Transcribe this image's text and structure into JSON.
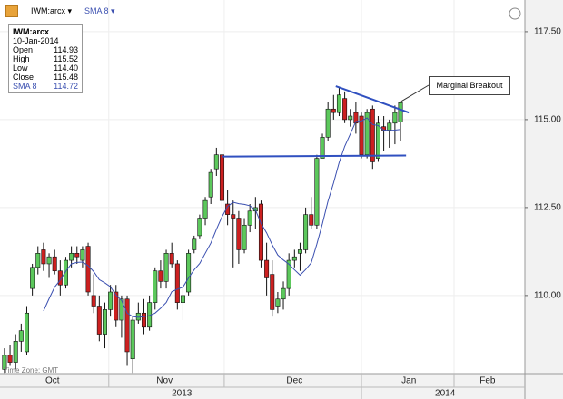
{
  "chart_data": {
    "type": "candlestick",
    "toolbar": {
      "symbol_menu": "IWM:arcx",
      "study_menu": "SMA 8"
    },
    "info": {
      "symbol": "IWM:arcx",
      "date": "10-Jan-2014",
      "rows": [
        {
          "label": "Open",
          "value": "114.93"
        },
        {
          "label": "High",
          "value": "115.52"
        },
        {
          "label": "Low",
          "value": "114.40"
        },
        {
          "label": "Close",
          "value": "115.48"
        },
        {
          "label": "SMA 8",
          "value": "114.72"
        }
      ]
    },
    "annotation": "Marginal Breakout",
    "timezone": "Time Zone: GMT",
    "xlim": [
      -0.8,
      93.3
    ],
    "ylim": [
      107.78,
      118.4
    ],
    "yticks": [
      {
        "value": 110,
        "label": "110.00"
      },
      {
        "value": 112.5,
        "label": "112.50"
      },
      {
        "value": 115,
        "label": "115.00"
      },
      {
        "value": 117.5,
        "label": "117.50"
      }
    ],
    "month_boundaries": [
      18.7,
      39.4,
      64,
      80.6
    ],
    "months": [
      {
        "value": 8.6,
        "label": "Oct"
      },
      {
        "value": 28.7,
        "label": "Nov"
      },
      {
        "value": 52,
        "label": "Dec"
      },
      {
        "value": 72.5,
        "label": "Jan"
      },
      {
        "value": 86.6,
        "label": "Feb"
      }
    ],
    "years": [
      {
        "value": 31.8,
        "label": "2013"
      },
      {
        "value": 79,
        "label": "2014"
      }
    ],
    "year_boundary": 64,
    "grid": true,
    "up_color": "#5cc85c",
    "down_color": "#cc2020",
    "series": [
      {
        "name": "IWM:arcx",
        "open": [
          107.9,
          108.3,
          108.1,
          108.7,
          108.4,
          110.2,
          110.8,
          111.3,
          110.9,
          111.1,
          110.7,
          110.3,
          111.0,
          111.2,
          111.0,
          111.4,
          110.0,
          109.7,
          108.9,
          109.6,
          110.1,
          109.3,
          109.9,
          108.2,
          109.3,
          109.5,
          109.1,
          109.8,
          110.7,
          110.4,
          111.2,
          110.9,
          109.8,
          110.1,
          111.3,
          111.7,
          112.2,
          112.8,
          113.6,
          114.0,
          112.6,
          112.3,
          112.2,
          111.3,
          112.0,
          112.4,
          112.6,
          111.0,
          110.6,
          109.7,
          109.9,
          110.2,
          111.0,
          111.2,
          111.3,
          112.3,
          112.0,
          113.9,
          114.5,
          115.3,
          115.2,
          115.6,
          115.0,
          115.2,
          115.1,
          114.0,
          115.3,
          113.9,
          114.8,
          114.7,
          114.9,
          114.93
        ],
        "high": [
          108.5,
          108.6,
          108.9,
          109.2,
          109.7,
          110.9,
          111.4,
          111.5,
          111.2,
          111.3,
          111.0,
          111.1,
          111.4,
          111.4,
          111.4,
          111.5,
          110.6,
          110.0,
          109.8,
          110.3,
          110.3,
          110.0,
          110.0,
          109.4,
          109.8,
          109.9,
          110.0,
          110.8,
          111.0,
          111.3,
          111.5,
          111.0,
          110.2,
          111.3,
          111.7,
          112.3,
          112.8,
          113.6,
          114.2,
          114.0,
          113.0,
          112.7,
          112.4,
          112.2,
          112.6,
          112.8,
          112.7,
          111.5,
          111.0,
          110.1,
          110.4,
          111.2,
          111.3,
          111.5,
          112.5,
          112.8,
          114.0,
          114.6,
          115.5,
          115.7,
          115.9,
          115.8,
          115.3,
          115.5,
          115.2,
          115.3,
          115.4,
          115.1,
          115.1,
          115.0,
          115.4,
          115.52
        ],
        "low": [
          107.8,
          108.0,
          107.9,
          108.4,
          108.3,
          110.0,
          110.6,
          110.7,
          110.5,
          110.6,
          110.0,
          110.2,
          110.8,
          110.9,
          110.8,
          110.0,
          109.5,
          108.7,
          108.5,
          109.4,
          109.1,
          108.8,
          108.0,
          107.8,
          109.2,
          108.9,
          109.0,
          109.6,
          110.2,
          110.2,
          110.8,
          109.6,
          109.3,
          110.0,
          111.2,
          111.6,
          112.0,
          112.6,
          113.4,
          112.5,
          112.0,
          110.8,
          110.9,
          111.2,
          111.8,
          111.9,
          110.8,
          110.0,
          109.4,
          109.5,
          109.6,
          110.0,
          110.8,
          110.7,
          111.2,
          111.9,
          111.9,
          113.9,
          114.4,
          115.0,
          115.1,
          114.9,
          114.8,
          114.6,
          113.9,
          113.9,
          113.6,
          113.8,
          114.1,
          114.2,
          114.3,
          114.4
        ],
        "close": [
          108.3,
          108.1,
          108.7,
          109.0,
          109.5,
          110.8,
          111.2,
          110.9,
          111.1,
          110.7,
          110.3,
          111.0,
          111.2,
          111.1,
          111.3,
          110.1,
          109.7,
          108.9,
          109.6,
          110.1,
          109.3,
          109.9,
          108.4,
          109.3,
          109.5,
          109.1,
          109.8,
          110.7,
          110.4,
          111.2,
          110.9,
          109.8,
          110.0,
          111.2,
          111.6,
          112.2,
          112.7,
          113.5,
          114.0,
          112.7,
          112.3,
          112.2,
          111.3,
          112.0,
          112.4,
          112.5,
          111.0,
          110.5,
          109.6,
          109.9,
          110.2,
          111.0,
          111.1,
          111.3,
          112.3,
          112.0,
          113.9,
          114.5,
          115.3,
          115.2,
          115.7,
          115.0,
          115.1,
          114.9,
          114.0,
          115.2,
          113.8,
          114.9,
          114.7,
          114.9,
          115.2,
          115.48
        ]
      },
      {
        "name": "SMA 8",
        "color": "#3a4fb0",
        "values": [
          null,
          null,
          null,
          null,
          null,
          null,
          null,
          109.56,
          109.91,
          110.24,
          110.44,
          110.69,
          110.9,
          110.94,
          110.95,
          110.85,
          110.68,
          110.45,
          110.36,
          110.25,
          110.01,
          109.86,
          109.5,
          109.4,
          109.38,
          109.4,
          109.43,
          109.5,
          109.64,
          109.8,
          110.11,
          110.18,
          110.24,
          110.5,
          110.73,
          110.91,
          111.2,
          111.49,
          111.88,
          112.24,
          112.53,
          112.65,
          112.61,
          112.59,
          112.55,
          112.43,
          112.05,
          111.78,
          111.44,
          111.15,
          111.01,
          110.89,
          110.73,
          110.58,
          110.74,
          110.93,
          111.46,
          112.04,
          112.68,
          113.2,
          113.78,
          114.24,
          114.59,
          114.95,
          114.96,
          115.05,
          114.86,
          114.83,
          114.7,
          114.69,
          114.7,
          114.72
        ]
      }
    ],
    "trendlines": [
      {
        "color": "#3050c0",
        "x": [
          39.1,
          72
        ],
        "y": [
          113.95,
          113.98
        ]
      },
      {
        "color": "#3050c0",
        "x": [
          59.4,
          72.5
        ],
        "y": [
          115.95,
          115.2
        ]
      }
    ]
  }
}
